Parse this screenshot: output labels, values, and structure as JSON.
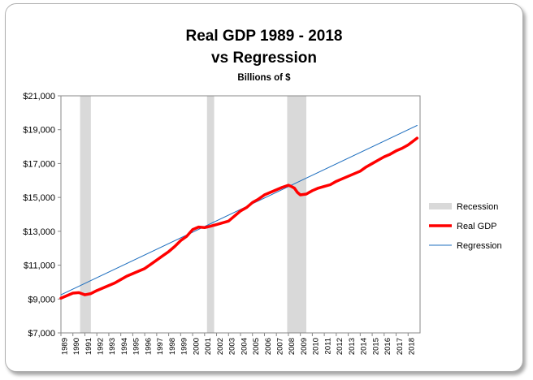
{
  "chart_data": {
    "type": "line",
    "title": "Real GDP 1989 - 2018",
    "title_line2": "vs Regression",
    "subtitle": "Billions of $",
    "ylim": [
      7000,
      21000
    ],
    "y_ticks": [
      "$7,000",
      "$9,000",
      "$11,000",
      "$13,000",
      "$15,000",
      "$17,000",
      "$19,000",
      "$21,000"
    ],
    "y_tick_values": [
      7000,
      9000,
      11000,
      13000,
      15000,
      17000,
      19000,
      21000
    ],
    "x_ticks": [
      "1989",
      "1990",
      "1991",
      "1992",
      "1993",
      "1994",
      "1995",
      "1996",
      "1997",
      "1998",
      "1999",
      "2000",
      "2001",
      "2002",
      "2003",
      "2004",
      "2005",
      "2006",
      "2007",
      "2008",
      "2009",
      "2010",
      "2011",
      "2012",
      "2013",
      "2014",
      "2015",
      "2016",
      "2017",
      "2018"
    ],
    "xlim": [
      1989.0,
      2019.0
    ],
    "grid": false,
    "legend_position": "right",
    "recessions": [
      {
        "start": 1990.6,
        "end": 1991.5
      },
      {
        "start": 2001.2,
        "end": 2001.8
      },
      {
        "start": 2007.9,
        "end": 2009.5
      }
    ],
    "series": [
      {
        "name": "Real GDP",
        "color": "#ff0000",
        "x": [
          1989.0,
          1989.5,
          1990.0,
          1990.5,
          1991.0,
          1991.5,
          1992.0,
          1992.5,
          1993.0,
          1993.5,
          1994.0,
          1994.5,
          1995.0,
          1995.5,
          1996.0,
          1996.5,
          1997.0,
          1997.5,
          1998.0,
          1998.5,
          1999.0,
          1999.5,
          2000.0,
          2000.5,
          2001.0,
          2001.5,
          2002.0,
          2002.5,
          2003.0,
          2003.5,
          2004.0,
          2004.5,
          2005.0,
          2005.5,
          2006.0,
          2006.5,
          2007.0,
          2007.5,
          2008.0,
          2008.25,
          2008.5,
          2008.75,
          2009.0,
          2009.5,
          2010.0,
          2010.5,
          2011.0,
          2011.5,
          2012.0,
          2012.5,
          2013.0,
          2013.5,
          2014.0,
          2014.5,
          2015.0,
          2015.5,
          2016.0,
          2016.5,
          2017.0,
          2017.5,
          2018.0,
          2018.75
        ],
        "y": [
          9050,
          9200,
          9350,
          9380,
          9250,
          9320,
          9500,
          9650,
          9800,
          9950,
          10150,
          10350,
          10500,
          10650,
          10800,
          11050,
          11300,
          11550,
          11800,
          12100,
          12450,
          12700,
          13100,
          13250,
          13220,
          13300,
          13400,
          13500,
          13600,
          13900,
          14200,
          14400,
          14700,
          14900,
          15150,
          15300,
          15450,
          15600,
          15720,
          15650,
          15550,
          15300,
          15150,
          15200,
          15400,
          15550,
          15650,
          15750,
          15950,
          16100,
          16250,
          16400,
          16550,
          16800,
          17000,
          17200,
          17400,
          17550,
          17750,
          17900,
          18100,
          18500
        ]
      },
      {
        "name": "Regression",
        "color": "#1f6fbf",
        "x": [
          1989.0,
          2018.75
        ],
        "y": [
          9250,
          19250
        ]
      }
    ],
    "legend": [
      {
        "label": "Recession",
        "kind": "area",
        "color": "#d9d9d9"
      },
      {
        "label": "Real GDP",
        "kind": "thick-line",
        "color": "#ff0000"
      },
      {
        "label": "Regression",
        "kind": "thin-line",
        "color": "#1f6fbf"
      }
    ]
  }
}
